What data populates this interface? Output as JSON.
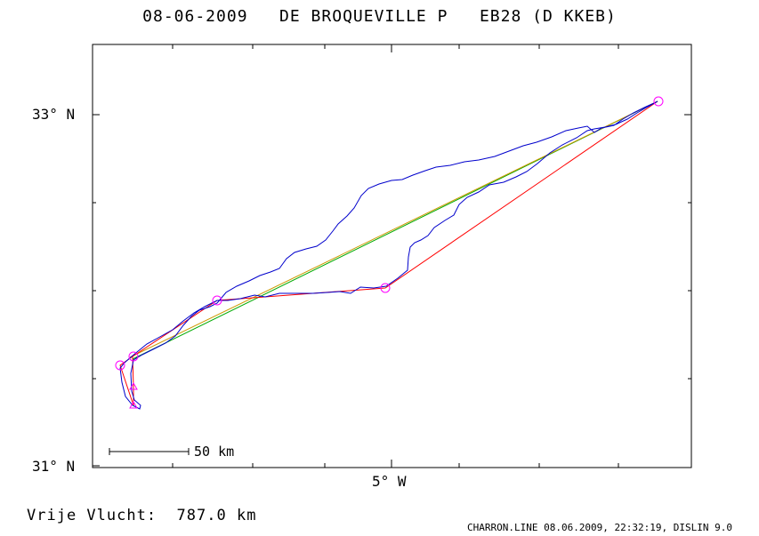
{
  "header": {
    "date": "08-06-2009",
    "pilot": "DE BROQUEVILLE P",
    "balloon": "EB28 (D KKEB)"
  },
  "axes": {
    "lat_top": "33° N",
    "lat_bottom": "31° N",
    "lon_mid": "5° W"
  },
  "scale_bar": {
    "label": "50 km"
  },
  "footer": {
    "flight_label": "Vrije Vlucht:",
    "flight_value": "787.0 km",
    "credit": "CHARRON.LINE 08.06.2009, 22:32:19, DISLIN 9.0"
  },
  "colors": {
    "track": "#0000cc",
    "task_line": "#ff0000",
    "straight_line_1": "#00aa00",
    "straight_line_2": "#cc9900",
    "waypoint": "#ff00ff"
  }
}
